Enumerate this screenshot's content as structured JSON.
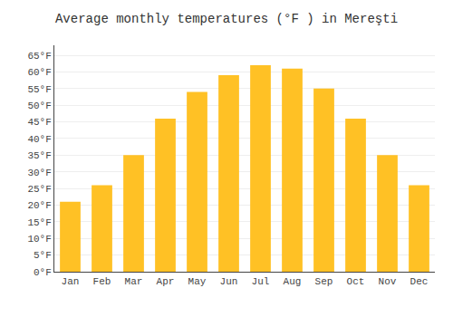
{
  "chart_data": {
    "type": "bar",
    "title": "Average monthly temperatures (°F ) in Mereşti",
    "categories": [
      "Jan",
      "Feb",
      "Mar",
      "Apr",
      "May",
      "Jun",
      "Jul",
      "Aug",
      "Sep",
      "Oct",
      "Nov",
      "Dec"
    ],
    "values": [
      21,
      26,
      35,
      46,
      54,
      59,
      62,
      61,
      55,
      46,
      35,
      26
    ],
    "color": "#FFC125",
    "ylim": [
      0,
      68
    ],
    "yticks": [
      {
        "value": 0,
        "label": "0°F"
      },
      {
        "value": 5,
        "label": "5°F"
      },
      {
        "value": 10,
        "label": "10°F"
      },
      {
        "value": 15,
        "label": "15°F"
      },
      {
        "value": 20,
        "label": "20°F"
      },
      {
        "value": 25,
        "label": "25°F"
      },
      {
        "value": 30,
        "label": "30°F"
      },
      {
        "value": 35,
        "label": "35°F"
      },
      {
        "value": 40,
        "label": "40°F"
      },
      {
        "value": 45,
        "label": "45°F"
      },
      {
        "value": 50,
        "label": "50°F"
      },
      {
        "value": 55,
        "label": "55°F"
      },
      {
        "value": 60,
        "label": "60°F"
      },
      {
        "value": 65,
        "label": "65°F"
      }
    ],
    "grid": true
  }
}
